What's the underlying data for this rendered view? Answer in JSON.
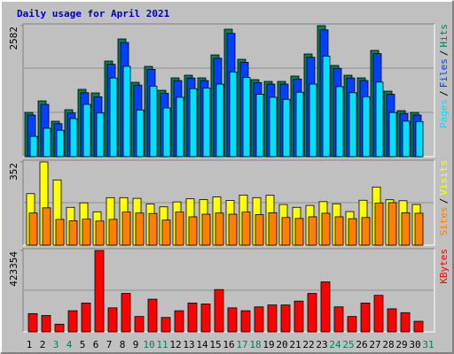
{
  "chart_data": [
    {
      "type": "bar",
      "title": "Daily usage for April 2021",
      "legend_separator": "/",
      "ylim": [
        0,
        2582
      ],
      "yticks": [
        2582
      ],
      "series": [
        {
          "name": "Hits",
          "color": "#00805c",
          "values": [
            872,
            1099,
            698,
            925,
            1326,
            1256,
            1884,
            2320,
            1465,
            1779,
            1308,
            1553,
            1605,
            1553,
            2006,
            2512,
            1919,
            1518,
            1483,
            1483,
            1588,
            2024,
            2582,
            1797,
            1605,
            1553,
            2094,
            1291,
            907,
            872,
            null
          ]
        },
        {
          "name": "Files",
          "color": "#0040ff",
          "values": [
            820,
            1030,
            650,
            860,
            1260,
            1180,
            1820,
            2250,
            1410,
            1720,
            1250,
            1500,
            1550,
            1500,
            1940,
            2430,
            1860,
            1460,
            1430,
            1430,
            1530,
            1960,
            2500,
            1740,
            1550,
            1500,
            2030,
            1230,
            850,
            820,
            null
          ]
        },
        {
          "name": "Pages",
          "color": "#00e0ff",
          "values": [
            400,
            560,
            520,
            750,
            1030,
            860,
            1550,
            1780,
            920,
            1390,
            960,
            1170,
            1340,
            1350,
            1430,
            1670,
            1560,
            1230,
            1170,
            1130,
            1270,
            1430,
            1980,
            1380,
            1260,
            1180,
            1470,
            870,
            700,
            690,
            null
          ]
        }
      ]
    },
    {
      "type": "bar",
      "legend_separator": "/",
      "ylim": [
        0,
        352
      ],
      "yticks": [
        352
      ],
      "series": [
        {
          "name": "Visits",
          "color": "#ffff00",
          "values": [
            218,
            352,
            276,
            160,
            179,
            141,
            201,
            201,
            198,
            174,
            162,
            183,
            196,
            193,
            204,
            189,
            212,
            201,
            211,
            172,
            160,
            168,
            184,
            175,
            142,
            190,
            246,
            192,
            188,
            172,
            null
          ]
        },
        {
          "name": "Sites",
          "color": "#ff8000",
          "values": [
            136,
            158,
            109,
            103,
            110,
            102,
            109,
            140,
            136,
            134,
            106,
            140,
            120,
            131,
            136,
            131,
            140,
            129,
            137,
            117,
            113,
            120,
            135,
            120,
            112,
            117,
            178,
            180,
            137,
            135,
            null
          ]
        }
      ]
    },
    {
      "type": "bar",
      "legend_separator": "/",
      "ylim": [
        0,
        423354
      ],
      "yticks": [
        423354
      ],
      "categories": [
        "1",
        "2",
        "3",
        "4",
        "5",
        "6",
        "7",
        "8",
        "9",
        "10",
        "11",
        "12",
        "13",
        "14",
        "15",
        "16",
        "17",
        "18",
        "19",
        "20",
        "21",
        "22",
        "23",
        "24",
        "25",
        "26",
        "27",
        "28",
        "29",
        "30",
        "31"
      ],
      "weekend_days": [
        "3",
        "4",
        "10",
        "11",
        "17",
        "18",
        "24",
        "25",
        "31"
      ],
      "weekend_color": "#00805c",
      "series": [
        {
          "name": "KBytes",
          "color": "#ff0000",
          "values": [
            95000,
            85000,
            40000,
            110000,
            150000,
            423354,
            125000,
            200000,
            80000,
            170000,
            75000,
            110000,
            150000,
            145000,
            220000,
            125000,
            110000,
            130000,
            140000,
            140000,
            160000,
            200000,
            260000,
            130000,
            80000,
            150000,
            190000,
            120000,
            100000,
            55000,
            null
          ]
        }
      ]
    }
  ]
}
